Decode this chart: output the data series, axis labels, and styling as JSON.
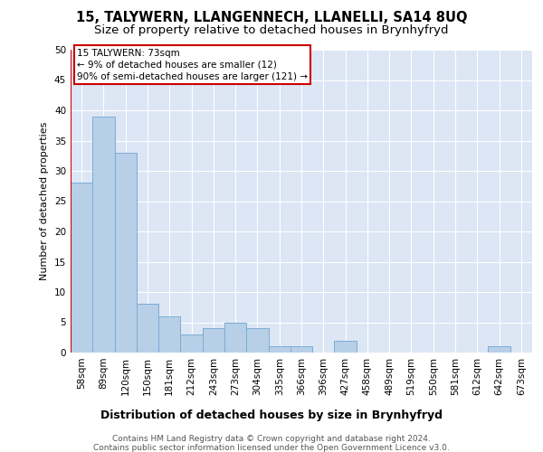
{
  "title": "15, TALYWERN, LLANGENNECH, LLANELLI, SA14 8UQ",
  "subtitle": "Size of property relative to detached houses in Brynhyfryd",
  "xlabel": "Distribution of detached houses by size in Brynhyfryd",
  "ylabel": "Number of detached properties",
  "categories": [
    "58sqm",
    "89sqm",
    "120sqm",
    "150sqm",
    "181sqm",
    "212sqm",
    "243sqm",
    "273sqm",
    "304sqm",
    "335sqm",
    "366sqm",
    "396sqm",
    "427sqm",
    "458sqm",
    "489sqm",
    "519sqm",
    "550sqm",
    "581sqm",
    "612sqm",
    "642sqm",
    "673sqm"
  ],
  "values": [
    28,
    39,
    33,
    8,
    6,
    3,
    4,
    5,
    4,
    1,
    1,
    0,
    2,
    0,
    0,
    0,
    0,
    0,
    0,
    1,
    0
  ],
  "bar_color": "#b8cfe8",
  "bar_edge_color": "#7aadd4",
  "background_color": "#dce6f5",
  "ylim": [
    0,
    50
  ],
  "yticks": [
    0,
    5,
    10,
    15,
    20,
    25,
    30,
    35,
    40,
    45,
    50
  ],
  "annotation_line1": "15 TALYWERN: 73sqm",
  "annotation_line2": "← 9% of detached houses are smaller (12)",
  "annotation_line3": "90% of semi-detached houses are larger (121) →",
  "annotation_box_facecolor": "#ffffff",
  "annotation_box_edgecolor": "#cc0000",
  "red_line_color": "#cc0000",
  "footer_line1": "Contains HM Land Registry data © Crown copyright and database right 2024.",
  "footer_line2": "Contains public sector information licensed under the Open Government Licence v3.0.",
  "title_fontsize": 10.5,
  "subtitle_fontsize": 9.5,
  "xlabel_fontsize": 9,
  "ylabel_fontsize": 8,
  "tick_fontsize": 7.5,
  "annotation_fontsize": 7.5,
  "footer_fontsize": 6.5
}
